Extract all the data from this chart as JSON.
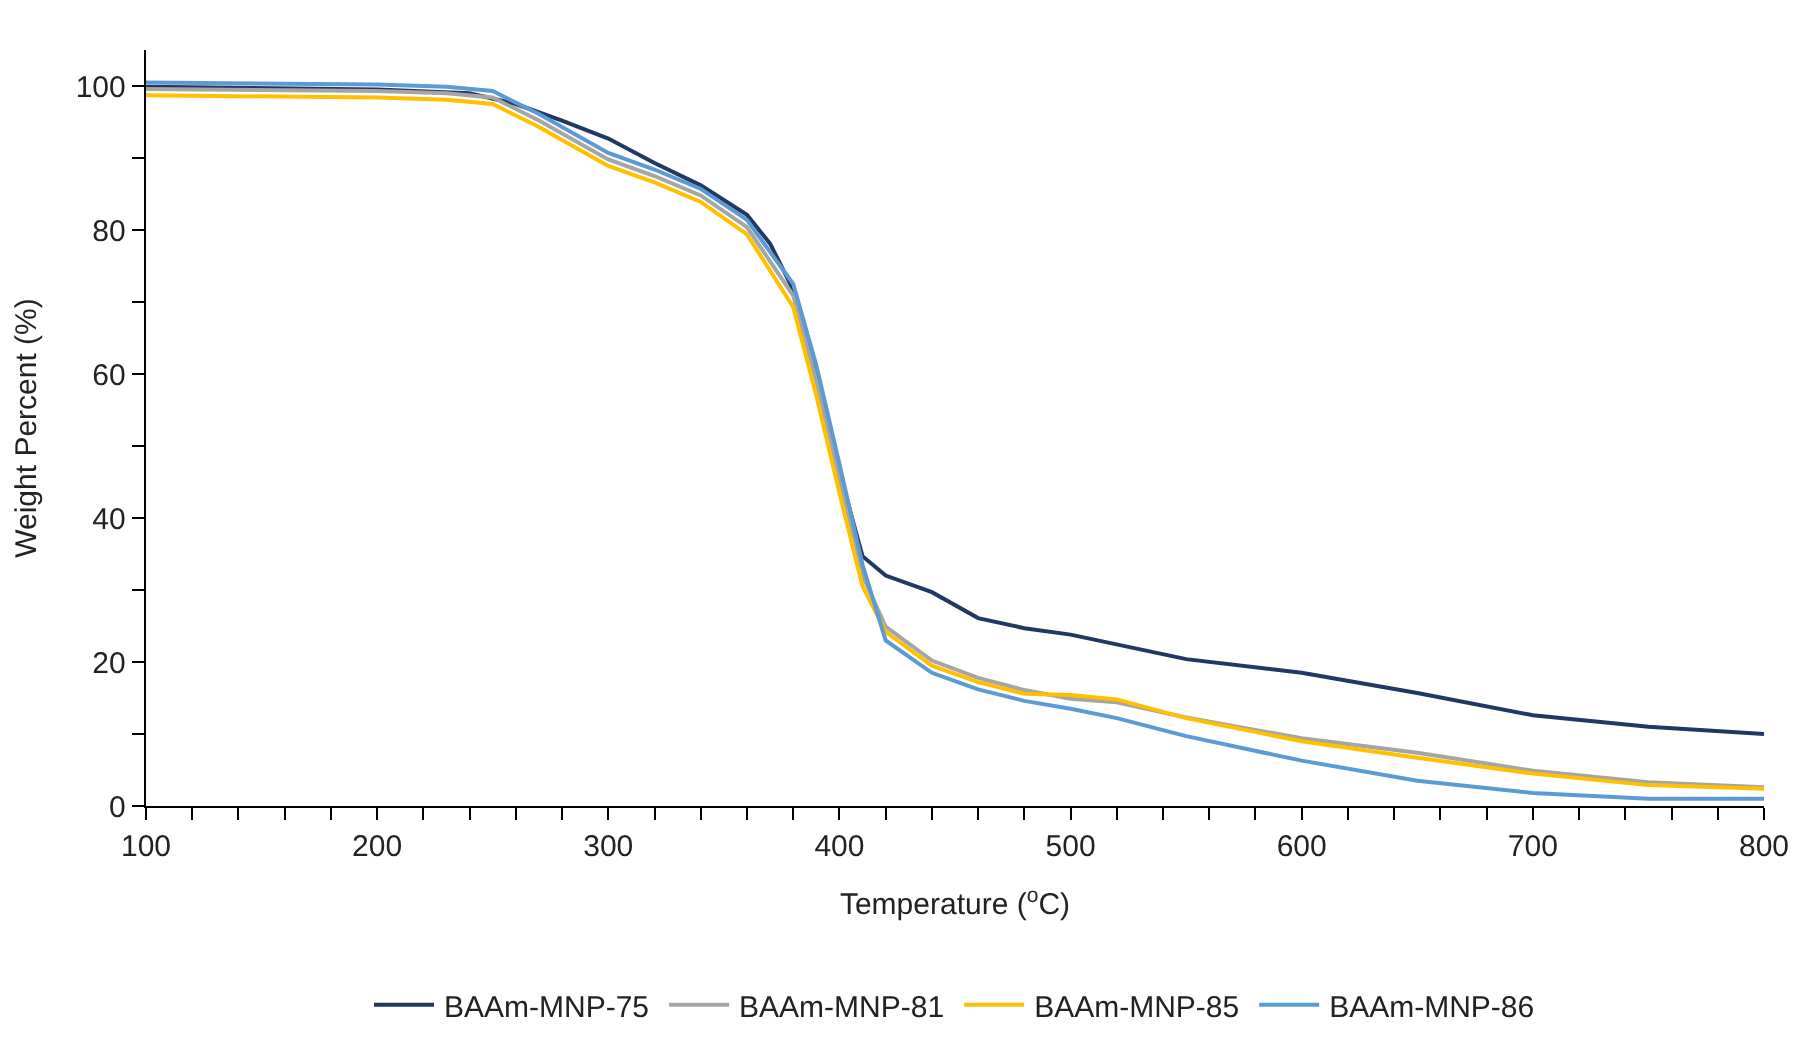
{
  "chart_data": {
    "type": "line",
    "xlabel": "Temperature ($^{o}$C)",
    "ylabel": "Weight Percent (%)",
    "xlim": [
      100,
      800
    ],
    "ylim": [
      0,
      105
    ],
    "xticks": [
      100,
      {
        "value": 120,
        "label": null
      },
      {
        "value": 140,
        "label": null
      },
      {
        "value": 160,
        "label": null
      },
      {
        "value": 180,
        "label": null
      },
      200,
      {
        "value": 220,
        "label": null
      },
      {
        "value": 240,
        "label": null
      },
      {
        "value": 260,
        "label": null
      },
      {
        "value": 280,
        "label": null
      },
      300,
      {
        "value": 320,
        "label": null
      },
      {
        "value": 340,
        "label": null
      },
      {
        "value": 360,
        "label": null
      },
      {
        "value": 380,
        "label": null
      },
      400,
      {
        "value": 420,
        "label": null
      },
      {
        "value": 440,
        "label": null
      },
      {
        "value": 460,
        "label": null
      },
      {
        "value": 480,
        "label": null
      },
      500,
      {
        "value": 520,
        "label": null
      },
      {
        "value": 540,
        "label": null
      },
      {
        "value": 560,
        "label": null
      },
      {
        "value": 580,
        "label": null
      },
      600,
      {
        "value": 620,
        "label": null
      },
      {
        "value": 640,
        "label": null
      },
      {
        "value": 660,
        "label": null
      },
      {
        "value": 680,
        "label": null
      },
      700,
      {
        "value": 720,
        "label": null
      },
      {
        "value": 740,
        "label": null
      },
      {
        "value": 760,
        "label": null
      },
      {
        "value": 780,
        "label": null
      },
      800
    ],
    "yticks": [
      0,
      {
        "value": 10,
        "label": null
      },
      20,
      {
        "value": 30,
        "label": null
      },
      40,
      {
        "value": 50,
        "label": null
      },
      60,
      {
        "value": 70,
        "label": null
      },
      80,
      {
        "value": 90,
        "label": null
      },
      100
    ],
    "grid": false,
    "legend": "bottom",
    "marker": "none",
    "line_style": "solid",
    "series": [
      {
        "name": "BAAm-MNP-75",
        "color": "#203864",
        "x": [
          100,
          200,
          240,
          260,
          280,
          300,
          320,
          340,
          360,
          370,
          380,
          390,
          400,
          410,
          420,
          440,
          460,
          480,
          500,
          550,
          600,
          650,
          700,
          750,
          800
        ],
        "values": [
          99.9,
          99.5,
          99.0,
          97.5,
          95.2,
          92.7,
          89.3,
          86.2,
          82.1,
          78.1,
          71.7,
          60.0,
          46.4,
          34.7,
          32.0,
          29.7,
          26.1,
          24.7,
          23.8,
          20.4,
          18.5,
          15.7,
          12.6,
          11.0,
          10.0
        ]
      },
      {
        "name": "BAAm-MNP-81",
        "color": "#a5a5a5",
        "x": [
          100,
          200,
          230,
          250,
          270,
          300,
          320,
          340,
          360,
          380,
          390,
          400,
          410,
          420,
          440,
          460,
          480,
          500,
          520,
          550,
          600,
          650,
          700,
          750,
          800
        ],
        "values": [
          99.6,
          99.3,
          99.0,
          98.4,
          95.2,
          89.8,
          87.5,
          84.8,
          80.4,
          70.9,
          59.1,
          45.5,
          32.0,
          24.9,
          20.2,
          17.8,
          16.1,
          14.9,
          14.4,
          12.3,
          9.4,
          7.4,
          4.9,
          3.3,
          2.6
        ]
      },
      {
        "name": "BAAm-MNP-85",
        "color": "#ffc000",
        "x": [
          100,
          200,
          230,
          250,
          270,
          300,
          320,
          340,
          360,
          380,
          390,
          400,
          410,
          420,
          440,
          460,
          480,
          500,
          520,
          550,
          600,
          650,
          700,
          750,
          800
        ],
        "values": [
          98.7,
          98.4,
          98.1,
          97.5,
          94.3,
          88.9,
          86.6,
          83.9,
          79.4,
          69.3,
          57.0,
          43.5,
          30.5,
          24.2,
          19.5,
          17.2,
          15.6,
          15.4,
          14.8,
          12.2,
          9.0,
          6.7,
          4.5,
          2.9,
          2.4
        ]
      },
      {
        "name": "BAAm-MNP-86",
        "color": "#5b9bd5",
        "x": [
          100,
          200,
          230,
          250,
          270,
          300,
          320,
          340,
          360,
          380,
          390,
          400,
          410,
          420,
          440,
          460,
          480,
          500,
          520,
          550,
          600,
          650,
          700,
          750,
          800
        ],
        "values": [
          100.5,
          100.2,
          99.9,
          99.3,
          96.1,
          90.7,
          88.4,
          85.7,
          81.4,
          72.5,
          61.2,
          47.5,
          33.5,
          23.0,
          18.5,
          16.2,
          14.6,
          13.5,
          12.2,
          9.7,
          6.3,
          3.5,
          1.8,
          1.0,
          1.0
        ]
      }
    ]
  }
}
